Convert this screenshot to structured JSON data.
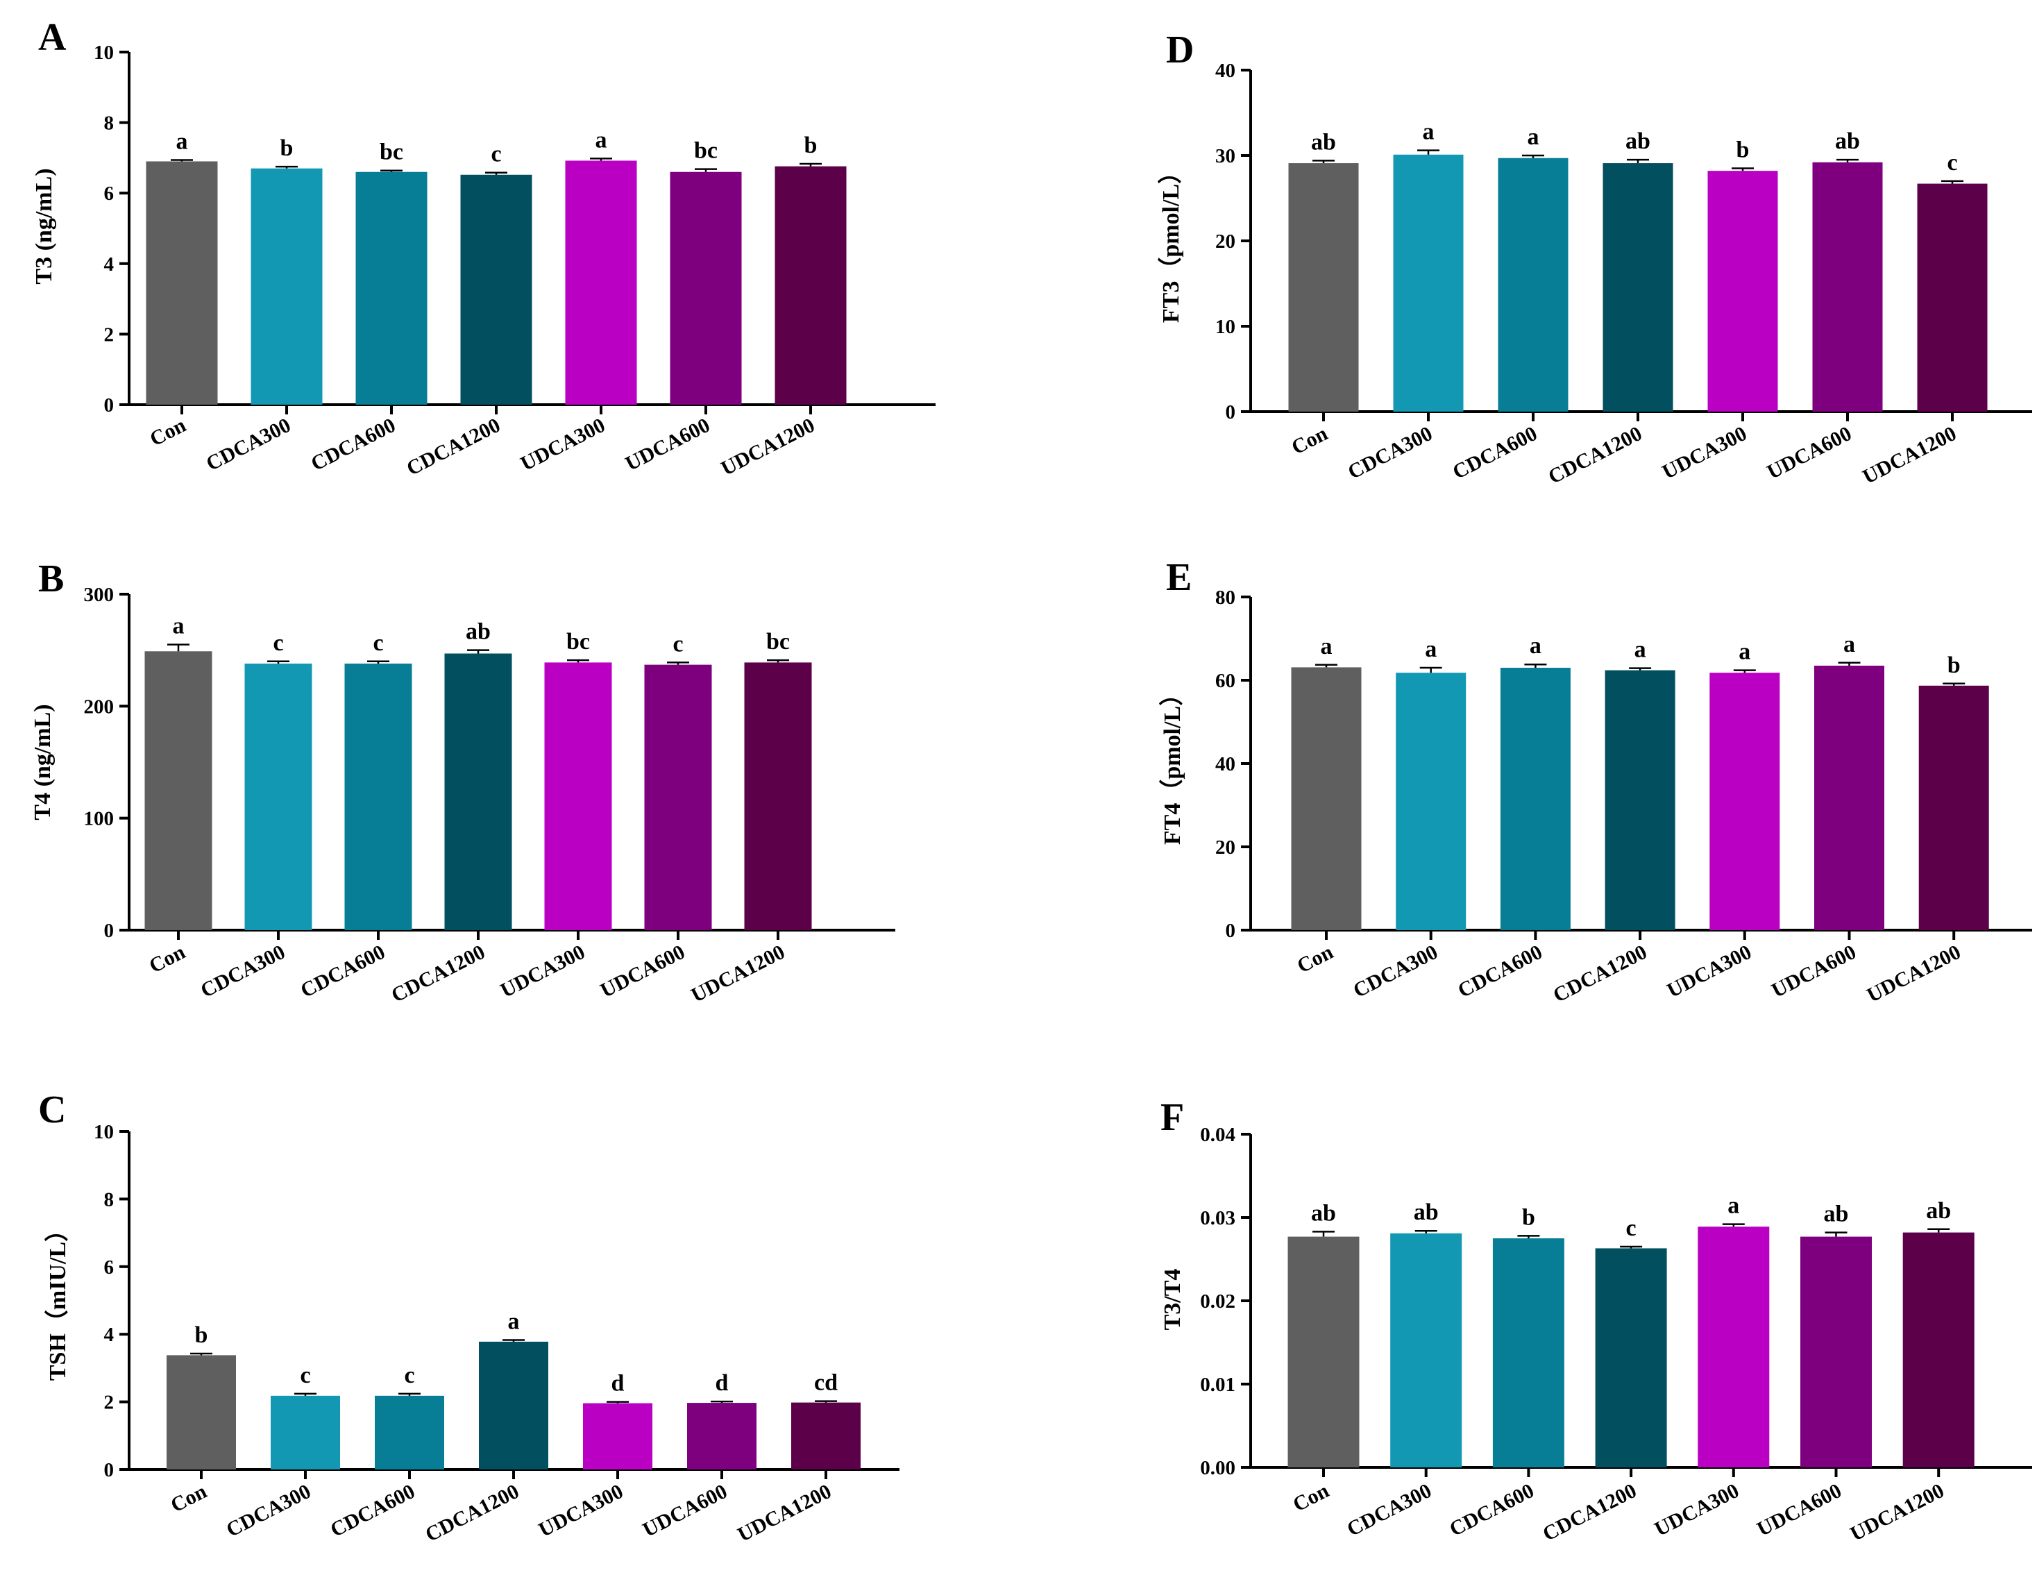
{
  "colors": {
    "Con": "#5f5f5f",
    "CDCA300": "#1398b4",
    "CDCA600": "#087d96",
    "CDCA1200": "#024f5f",
    "UDCA300": "#b900c3",
    "UDCA600": "#7f007f",
    "UDCA1200": "#5d004a"
  },
  "chart_data": [
    {
      "type": "bar",
      "panel": "A",
      "ylabel": "T3 (ng/mL)",
      "ylim": [
        0,
        10
      ],
      "yticks": [
        "0",
        "2",
        "4",
        "6",
        "8",
        "10"
      ],
      "categories": [
        "Con",
        "CDCA300",
        "CDCA600",
        "CDCA1200",
        "UDCA300",
        "UDCA600",
        "UDCA1200"
      ],
      "values": [
        6.9,
        6.7,
        6.6,
        6.52,
        6.92,
        6.6,
        6.76
      ],
      "errors": [
        0.04,
        0.05,
        0.04,
        0.06,
        0.06,
        0.08,
        0.07
      ],
      "significance": [
        "a",
        "b",
        "bc",
        "c",
        "a",
        "bc",
        "b"
      ]
    },
    {
      "type": "bar",
      "panel": "B",
      "ylabel": "T4 (ng/mL)",
      "ylim": [
        0,
        300
      ],
      "yticks": [
        "0",
        "100",
        "200",
        "300"
      ],
      "categories": [
        "Con",
        "CDCA300",
        "CDCA600",
        "CDCA1200",
        "UDCA300",
        "UDCA600",
        "UDCA1200"
      ],
      "values": [
        249,
        238,
        238,
        247,
        239,
        237,
        239
      ],
      "errors": [
        6,
        2,
        2,
        3,
        2,
        2,
        2
      ],
      "significance": [
        "a",
        "c",
        "c",
        "ab",
        "bc",
        "c",
        "bc"
      ]
    },
    {
      "type": "bar",
      "panel": "C",
      "ylabel": "TSH（mIU/L）",
      "ylim": [
        0,
        10
      ],
      "yticks": [
        "0",
        "2",
        "4",
        "6",
        "8",
        "10"
      ],
      "categories": [
        "Con",
        "CDCA300",
        "CDCA600",
        "CDCA1200",
        "UDCA300",
        "UDCA600",
        "UDCA1200"
      ],
      "values": [
        3.38,
        2.18,
        2.18,
        3.78,
        1.96,
        1.97,
        1.98
      ],
      "errors": [
        0.05,
        0.06,
        0.06,
        0.05,
        0.04,
        0.04,
        0.04
      ],
      "significance": [
        "b",
        "c",
        "c",
        "a",
        "d",
        "d",
        "cd"
      ]
    },
    {
      "type": "bar",
      "panel": "D",
      "ylabel": "FT3（pmol/L）",
      "ylim": [
        0,
        40
      ],
      "yticks": [
        "0",
        "10",
        "20",
        "30",
        "40"
      ],
      "categories": [
        "Con",
        "CDCA300",
        "CDCA600",
        "CDCA1200",
        "UDCA300",
        "UDCA600",
        "UDCA1200"
      ],
      "values": [
        29.1,
        30.1,
        29.7,
        29.1,
        28.2,
        29.2,
        26.7
      ],
      "errors": [
        0.3,
        0.5,
        0.3,
        0.4,
        0.3,
        0.3,
        0.3
      ],
      "significance": [
        "ab",
        "a",
        "a",
        "ab",
        "b",
        "ab",
        "c"
      ]
    },
    {
      "type": "bar",
      "panel": "E",
      "ylabel": "FT4（pmol/L）",
      "ylim": [
        0,
        80
      ],
      "yticks": [
        "0",
        "20",
        "40",
        "60",
        "80"
      ],
      "categories": [
        "Con",
        "CDCA300",
        "CDCA600",
        "CDCA1200",
        "UDCA300",
        "UDCA600",
        "UDCA1200"
      ],
      "values": [
        63.1,
        61.8,
        63.0,
        62.4,
        61.8,
        63.5,
        58.7
      ],
      "errors": [
        0.6,
        1.2,
        0.8,
        0.5,
        0.6,
        0.7,
        0.5
      ],
      "significance": [
        "a",
        "a",
        "a",
        "a",
        "a",
        "a",
        "b"
      ]
    },
    {
      "type": "bar",
      "panel": "F",
      "ylabel": "T3/T4",
      "ylim": [
        0,
        0.04
      ],
      "yticks": [
        "0.00",
        "0.01",
        "0.02",
        "0.03",
        "0.04"
      ],
      "categories": [
        "Con",
        "CDCA300",
        "CDCA600",
        "CDCA1200",
        "UDCA300",
        "UDCA600",
        "UDCA1200"
      ],
      "values": [
        0.0277,
        0.0281,
        0.0275,
        0.0263,
        0.0289,
        0.0277,
        0.0282
      ],
      "errors": [
        0.0006,
        0.0003,
        0.0003,
        0.0002,
        0.0003,
        0.0005,
        0.0004
      ],
      "significance": [
        "ab",
        "ab",
        "b",
        "c",
        "a",
        "ab",
        "ab"
      ]
    }
  ]
}
